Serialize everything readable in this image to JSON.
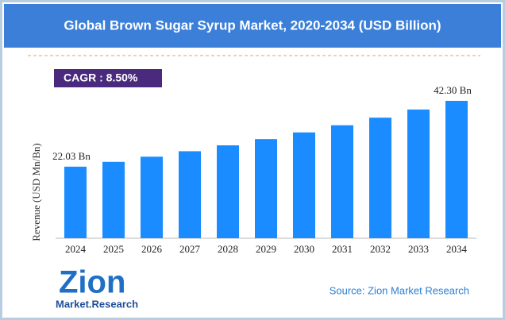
{
  "chart_data": {
    "type": "bar",
    "title": "Global Brown Sugar Syrup Market, 2020-2034 (USD Billion)",
    "cagr": "CAGR : 8.50%",
    "y_label": "Revenue (USD Mn/Bn)",
    "categories": [
      "2024",
      "2025",
      "2026",
      "2027",
      "2028",
      "2029",
      "2030",
      "2031",
      "2032",
      "2033",
      "2034"
    ],
    "values": [
      22.03,
      23.52,
      25.1,
      26.79,
      28.6,
      30.52,
      32.58,
      34.78,
      37.12,
      39.63,
      42.3
    ],
    "value_labels": [
      "22.03 Bn",
      null,
      null,
      null,
      null,
      null,
      null,
      null,
      null,
      null,
      "42.30 Bn"
    ],
    "color": "#1a8cff",
    "source": "Source: Zion Market Research",
    "logo": {
      "name": "Zion",
      "tagline": "Market.Research"
    }
  }
}
